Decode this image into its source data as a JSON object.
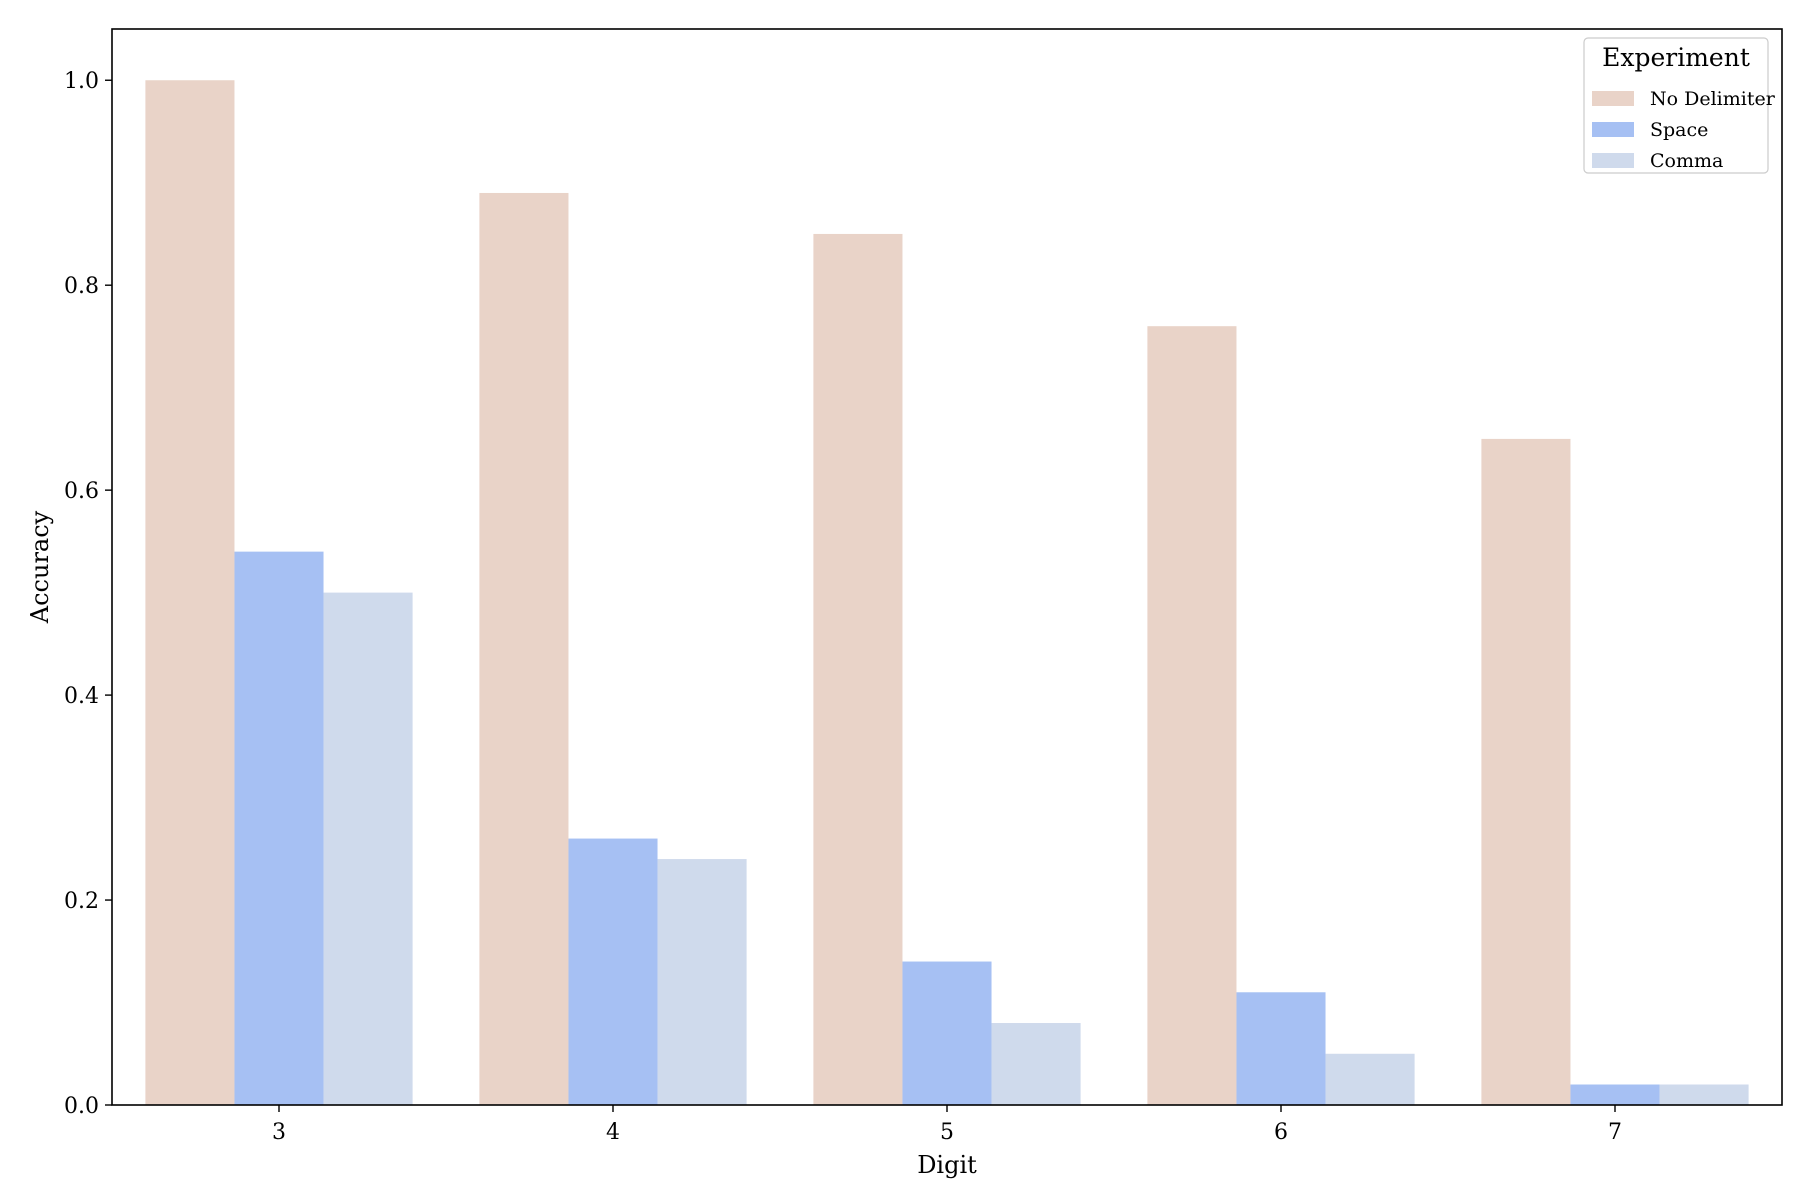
{
  "chart_data": {
    "type": "bar",
    "title": "",
    "xlabel": "Digit",
    "ylabel": "Accuracy",
    "categories": [
      "3",
      "4",
      "5",
      "6",
      "7"
    ],
    "series": [
      {
        "name": "No Delimiter",
        "color": "#e9d3c8",
        "values": [
          1.0,
          0.89,
          0.85,
          0.76,
          0.65
        ]
      },
      {
        "name": "Space",
        "color": "#a6c0f3",
        "values": [
          0.54,
          0.26,
          0.14,
          0.11,
          0.02
        ]
      },
      {
        "name": "Comma",
        "color": "#cfdaec",
        "values": [
          0.5,
          0.24,
          0.08,
          0.05,
          0.02
        ]
      }
    ],
    "ylim": [
      0,
      1.05
    ],
    "yticks": [
      0.0,
      0.2,
      0.4,
      0.6,
      0.8,
      1.0
    ],
    "ytick_labels": [
      "0.0",
      "0.2",
      "0.4",
      "0.6",
      "0.8",
      "1.0"
    ],
    "grid": false,
    "legend": {
      "title": "Experiment",
      "placement": "top-right"
    }
  }
}
